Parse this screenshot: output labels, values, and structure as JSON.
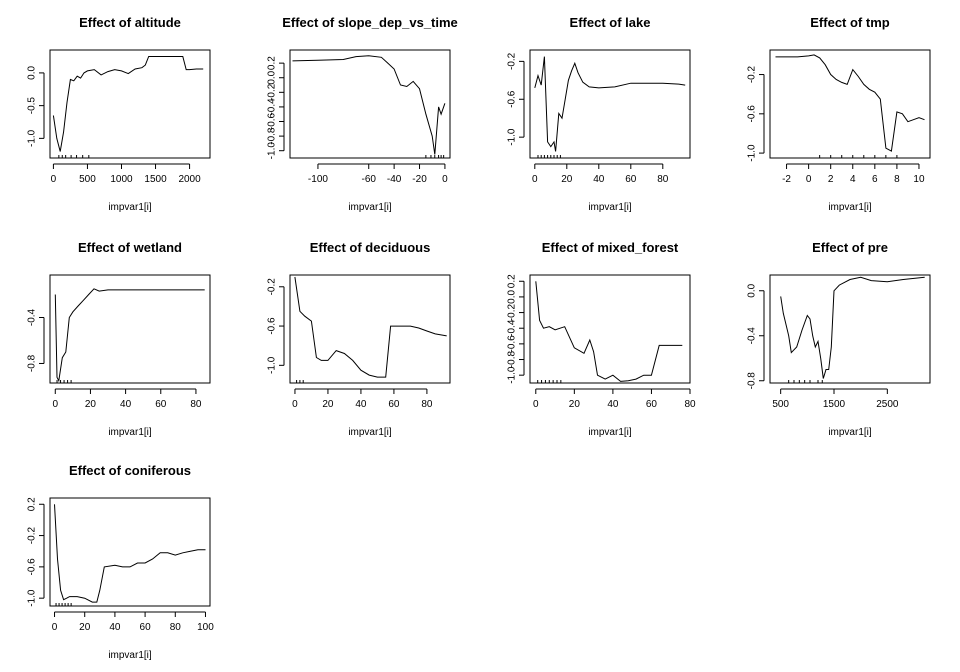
{
  "chart_data": [
    {
      "type": "line",
      "title": "Effect of altitude",
      "xlabel": "impvar1[i]",
      "xlim": [
        -50,
        2300
      ],
      "ylim": [
        -1.3,
        0.35
      ],
      "xticks": [
        0,
        500,
        1000,
        1500,
        2000
      ],
      "yticks": [
        -1.0,
        -0.5,
        0.0
      ],
      "ytick_labels": [
        "-1.0",
        "-0.5",
        "0.0"
      ],
      "rug": [
        80,
        130,
        180,
        260,
        340,
        430,
        520
      ],
      "x": [
        0,
        50,
        100,
        150,
        200,
        250,
        300,
        350,
        400,
        450,
        500,
        600,
        700,
        800,
        900,
        1000,
        1100,
        1200,
        1300,
        1350,
        1400,
        1500,
        1600,
        1700,
        1800,
        1900,
        1950,
        2000,
        2100,
        2200
      ],
      "y": [
        -0.65,
        -1.0,
        -1.2,
        -0.9,
        -0.45,
        -0.1,
        -0.12,
        -0.05,
        -0.08,
        0.0,
        0.03,
        0.05,
        -0.03,
        0.02,
        0.05,
        0.03,
        -0.01,
        0.06,
        0.08,
        0.12,
        0.25,
        0.25,
        0.25,
        0.25,
        0.25,
        0.25,
        0.05,
        0.05,
        0.06,
        0.06
      ]
    },
    {
      "type": "line",
      "title": "Effect of slope_dep_vs_time",
      "xlabel": "impvar1[i]",
      "xlim": [
        -122,
        4
      ],
      "ylim": [
        -1.1,
        0.38
      ],
      "xticks": [
        -100,
        -60,
        -40,
        -20,
        0
      ],
      "yticks": [
        -1.0,
        -0.8,
        -0.6,
        -0.4,
        -0.2,
        0.0,
        0.2
      ],
      "ytick_labels": [
        "-1.0",
        "-0.8",
        "-0.6",
        "-0.4",
        "-0.2",
        "0.0",
        "0.2"
      ],
      "rug": [
        -15,
        -11,
        -8,
        -5,
        -3,
        -1
      ],
      "x": [
        -120,
        -100,
        -80,
        -70,
        -60,
        -50,
        -45,
        -40,
        -35,
        -30,
        -25,
        -20,
        -15,
        -10,
        -8,
        -5,
        -3,
        0
      ],
      "y": [
        0.23,
        0.24,
        0.25,
        0.29,
        0.3,
        0.28,
        0.2,
        0.12,
        -0.1,
        -0.12,
        -0.05,
        -0.15,
        -0.5,
        -0.8,
        -1.05,
        -0.4,
        -0.5,
        -0.35
      ]
    },
    {
      "type": "line",
      "title": "Effect of lake",
      "xlabel": "impvar1[i]",
      "xlim": [
        -3,
        97
      ],
      "ylim": [
        -1.22,
        -0.08
      ],
      "xticks": [
        0,
        20,
        40,
        60,
        80
      ],
      "yticks": [
        -1.0,
        -0.6,
        -0.2
      ],
      "ytick_labels": [
        "-1.0",
        "-0.6",
        "-0.2"
      ],
      "rug": [
        2,
        4,
        6,
        8,
        10,
        12,
        14,
        16
      ],
      "x": [
        0,
        2,
        4,
        6,
        8,
        10,
        12,
        13,
        15,
        17,
        19,
        21,
        23,
        25,
        27,
        30,
        34,
        40,
        50,
        60,
        70,
        80,
        90,
        94
      ],
      "y": [
        -0.48,
        -0.35,
        -0.45,
        -0.15,
        -1.05,
        -1.1,
        -1.05,
        -1.15,
        -0.75,
        -0.8,
        -0.6,
        -0.4,
        -0.3,
        -0.22,
        -0.32,
        -0.42,
        -0.47,
        -0.48,
        -0.47,
        -0.43,
        -0.43,
        -0.43,
        -0.44,
        -0.45
      ]
    },
    {
      "type": "line",
      "title": "Effect of tmp",
      "xlabel": "impvar1[i]",
      "xlim": [
        -3.5,
        11
      ],
      "ylim": [
        -1.05,
        0.05
      ],
      "xticks": [
        -2,
        0,
        2,
        4,
        6,
        8,
        10
      ],
      "yticks": [
        -1.0,
        -0.6,
        -0.2
      ],
      "ytick_labels": [
        "-1.0",
        "-0.6",
        "-0.2"
      ],
      "rug": [
        1,
        2,
        3,
        4,
        5,
        6,
        7,
        8
      ],
      "x": [
        -3,
        -2,
        -1,
        0,
        0.5,
        1,
        1.5,
        2,
        2.5,
        3,
        3.5,
        4,
        4.5,
        5,
        5.5,
        6,
        6.5,
        7,
        7.5,
        8,
        8.5,
        9,
        9.5,
        10,
        10.5
      ],
      "y": [
        -0.02,
        -0.02,
        -0.02,
        -0.01,
        0.0,
        -0.03,
        -0.1,
        -0.2,
        -0.25,
        -0.28,
        -0.3,
        -0.15,
        -0.22,
        -0.3,
        -0.35,
        -0.38,
        -0.45,
        -0.95,
        -0.98,
        -0.58,
        -0.6,
        -0.68,
        -0.66,
        -0.64,
        -0.66
      ]
    },
    {
      "type": "line",
      "title": "Effect of wetland",
      "xlabel": "impvar1[i]",
      "xlim": [
        -3,
        88
      ],
      "ylim": [
        -0.97,
        -0.03
      ],
      "xticks": [
        0,
        20,
        40,
        60,
        80
      ],
      "yticks": [
        -0.8,
        -0.4
      ],
      "ytick_labels": [
        "-0.8",
        "-0.4"
      ],
      "rug": [
        1,
        3,
        5,
        7,
        9
      ],
      "x": [
        0,
        1,
        2,
        4,
        6,
        8,
        10,
        13,
        16,
        19,
        22,
        25,
        30,
        40,
        50,
        60,
        70,
        80,
        85
      ],
      "y": [
        -0.2,
        -0.92,
        -0.95,
        -0.75,
        -0.7,
        -0.4,
        -0.35,
        -0.3,
        -0.25,
        -0.2,
        -0.15,
        -0.17,
        -0.16,
        -0.16,
        -0.16,
        -0.16,
        -0.16,
        -0.16,
        -0.16
      ]
    },
    {
      "type": "line",
      "title": "Effect of deciduous",
      "xlabel": "impvar1[i]",
      "xlim": [
        -3,
        94
      ],
      "ylim": [
        -1.18,
        -0.08
      ],
      "xticks": [
        0,
        20,
        40,
        60,
        80
      ],
      "yticks": [
        -1.0,
        -0.6,
        -0.2
      ],
      "ytick_labels": [
        "-1.0",
        "-0.6",
        "-0.2"
      ],
      "rug": [
        1,
        3,
        5
      ],
      "x": [
        0,
        3,
        6,
        10,
        13,
        16,
        20,
        25,
        30,
        35,
        40,
        45,
        50,
        55,
        58,
        62,
        66,
        70,
        75,
        80,
        85,
        92
      ],
      "y": [
        -0.1,
        -0.45,
        -0.5,
        -0.55,
        -0.92,
        -0.95,
        -0.95,
        -0.85,
        -0.88,
        -0.95,
        -1.05,
        -1.1,
        -1.12,
        -1.12,
        -0.6,
        -0.6,
        -0.6,
        -0.6,
        -0.62,
        -0.65,
        -0.68,
        -0.7
      ]
    },
    {
      "type": "line",
      "title": "Effect of mixed_forest",
      "xlabel": "impvar1[i]",
      "xlim": [
        -3,
        80
      ],
      "ylim": [
        -1.1,
        0.28
      ],
      "xticks": [
        0,
        20,
        40,
        60,
        80
      ],
      "yticks": [
        -1.0,
        -0.8,
        -0.6,
        -0.4,
        -0.2,
        0.0,
        0.2
      ],
      "ytick_labels": [
        "-1.0",
        "-0.8",
        "-0.6",
        "-0.4",
        "-0.2",
        "0.0",
        "0.2"
      ],
      "rug": [
        1,
        3,
        5,
        7,
        9,
        11,
        13
      ],
      "x": [
        0,
        2,
        4,
        7,
        10,
        15,
        20,
        25,
        28,
        30,
        32,
        36,
        40,
        44,
        48,
        52,
        56,
        60,
        64,
        68,
        72,
        76
      ],
      "y": [
        0.2,
        -0.3,
        -0.4,
        -0.38,
        -0.42,
        -0.38,
        -0.65,
        -0.72,
        -0.55,
        -0.7,
        -1.0,
        -1.05,
        -1.0,
        -1.08,
        -1.07,
        -1.05,
        -1.0,
        -1.0,
        -0.62,
        -0.62,
        -0.62,
        -0.62
      ]
    },
    {
      "type": "line",
      "title": "Effect of pre",
      "xlabel": "impvar1[i]",
      "xlim": [
        300,
        3300
      ],
      "ylim": [
        -0.82,
        0.14
      ],
      "xticks": [
        500,
        1500,
        2500
      ],
      "yticks": [
        -0.8,
        -0.4,
        0.0
      ],
      "ytick_labels": [
        "-0.8",
        "-0.4",
        "0.0"
      ],
      "rug": [
        650,
        750,
        850,
        950,
        1050,
        1200,
        1280
      ],
      "x": [
        500,
        550,
        600,
        650,
        700,
        800,
        900,
        1000,
        1050,
        1100,
        1150,
        1200,
        1250,
        1300,
        1350,
        1400,
        1450,
        1500,
        1600,
        1800,
        2000,
        2200,
        2500,
        2800,
        3000,
        3200
      ],
      "y": [
        -0.05,
        -0.2,
        -0.3,
        -0.4,
        -0.55,
        -0.5,
        -0.35,
        -0.22,
        -0.25,
        -0.4,
        -0.5,
        -0.45,
        -0.6,
        -0.78,
        -0.7,
        -0.7,
        -0.5,
        0.0,
        0.05,
        0.1,
        0.12,
        0.09,
        0.08,
        0.1,
        0.11,
        0.12
      ]
    },
    {
      "type": "line",
      "title": "Effect of coniferous",
      "xlabel": "impvar1[i]",
      "xlim": [
        -3,
        103
      ],
      "ylim": [
        -1.1,
        0.28
      ],
      "xticks": [
        0,
        20,
        40,
        60,
        80,
        100
      ],
      "yticks": [
        -1.0,
        -0.6,
        -0.2,
        0.2
      ],
      "ytick_labels": [
        "-1.0",
        "-0.6",
        "-0.2",
        "0.2"
      ],
      "rug": [
        1,
        3,
        5,
        7,
        9,
        11
      ],
      "x": [
        0,
        2,
        4,
        6,
        8,
        10,
        15,
        20,
        25,
        28,
        30,
        33,
        40,
        45,
        50,
        55,
        60,
        65,
        70,
        75,
        80,
        85,
        90,
        95,
        100
      ],
      "y": [
        0.2,
        -0.5,
        -0.9,
        -1.02,
        -1.0,
        -0.98,
        -0.98,
        -1.0,
        -1.05,
        -1.05,
        -0.9,
        -0.6,
        -0.58,
        -0.6,
        -0.6,
        -0.55,
        -0.55,
        -0.5,
        -0.42,
        -0.42,
        -0.45,
        -0.42,
        -0.4,
        -0.38,
        -0.38
      ]
    }
  ]
}
